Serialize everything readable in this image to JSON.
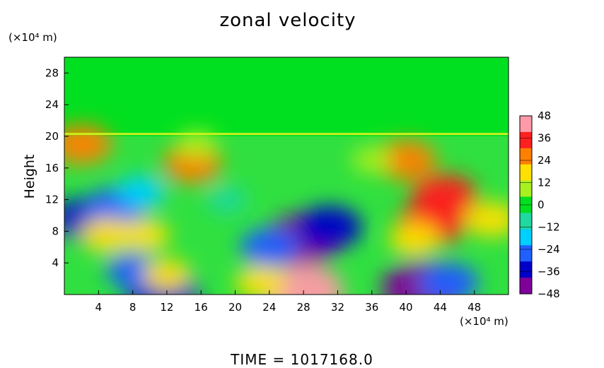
{
  "chart_data": {
    "type": "heatmap",
    "title": "zonal velocity",
    "ylabel": "Height",
    "xlabel": "",
    "x_unit": "(×10⁴ m)",
    "y_unit": "(×10⁴ m)",
    "xlim": [
      0,
      52
    ],
    "ylim": [
      0,
      30
    ],
    "x_ticks": [
      4,
      8,
      12,
      16,
      20,
      24,
      28,
      32,
      36,
      40,
      44,
      48
    ],
    "y_ticks": [
      4,
      8,
      12,
      16,
      20,
      24,
      28
    ],
    "colorbar": {
      "range": [
        -48,
        48
      ],
      "ticks": [
        48,
        36,
        24,
        12,
        0,
        -12,
        -24,
        -36,
        -48
      ],
      "colors": [
        "#ff9aa8",
        "#ff2020",
        "#ff8000",
        "#ffe000",
        "#a8f020",
        "#00e020",
        "#20d8a0",
        "#00d0ff",
        "#2060ff",
        "#0000c8",
        "#80009a"
      ]
    },
    "fields": [
      {
        "x": 2.5,
        "y": 9.5,
        "v": -34
      },
      {
        "x": 6,
        "y": 11,
        "v": -30
      },
      {
        "x": 9,
        "y": 13,
        "v": -20
      },
      {
        "x": 5,
        "y": 7.5,
        "v": 24
      },
      {
        "x": 9.5,
        "y": 7.5,
        "v": 20
      },
      {
        "x": 2,
        "y": 19,
        "v": 30
      },
      {
        "x": 15,
        "y": 16.5,
        "v": 28
      },
      {
        "x": 15.5,
        "y": 19,
        "v": 14
      },
      {
        "x": 28,
        "y": 7,
        "v": -44
      },
      {
        "x": 31,
        "y": 8.5,
        "v": -34
      },
      {
        "x": 24,
        "y": 6,
        "v": -28
      },
      {
        "x": 28,
        "y": 0.5,
        "v": 46
      },
      {
        "x": 23,
        "y": 1.5,
        "v": 22
      },
      {
        "x": 43,
        "y": 9,
        "v": 36
      },
      {
        "x": 44.5,
        "y": 12.5,
        "v": 34
      },
      {
        "x": 41,
        "y": 7,
        "v": 22
      },
      {
        "x": 40,
        "y": 17,
        "v": 30
      },
      {
        "x": 42,
        "y": 0.8,
        "v": -48
      },
      {
        "x": 45,
        "y": 1.5,
        "v": -30
      },
      {
        "x": 11.5,
        "y": 0.3,
        "v": -40
      },
      {
        "x": 8,
        "y": 3,
        "v": -24
      },
      {
        "x": 12,
        "y": 2.5,
        "v": 20
      },
      {
        "x": 19,
        "y": 12,
        "v": -14
      },
      {
        "x": 50,
        "y": 9.5,
        "v": 24
      },
      {
        "x": 36,
        "y": 17,
        "v": 14
      }
    ]
  },
  "footer": {
    "time_label": "TIME  =  1017168.0"
  }
}
